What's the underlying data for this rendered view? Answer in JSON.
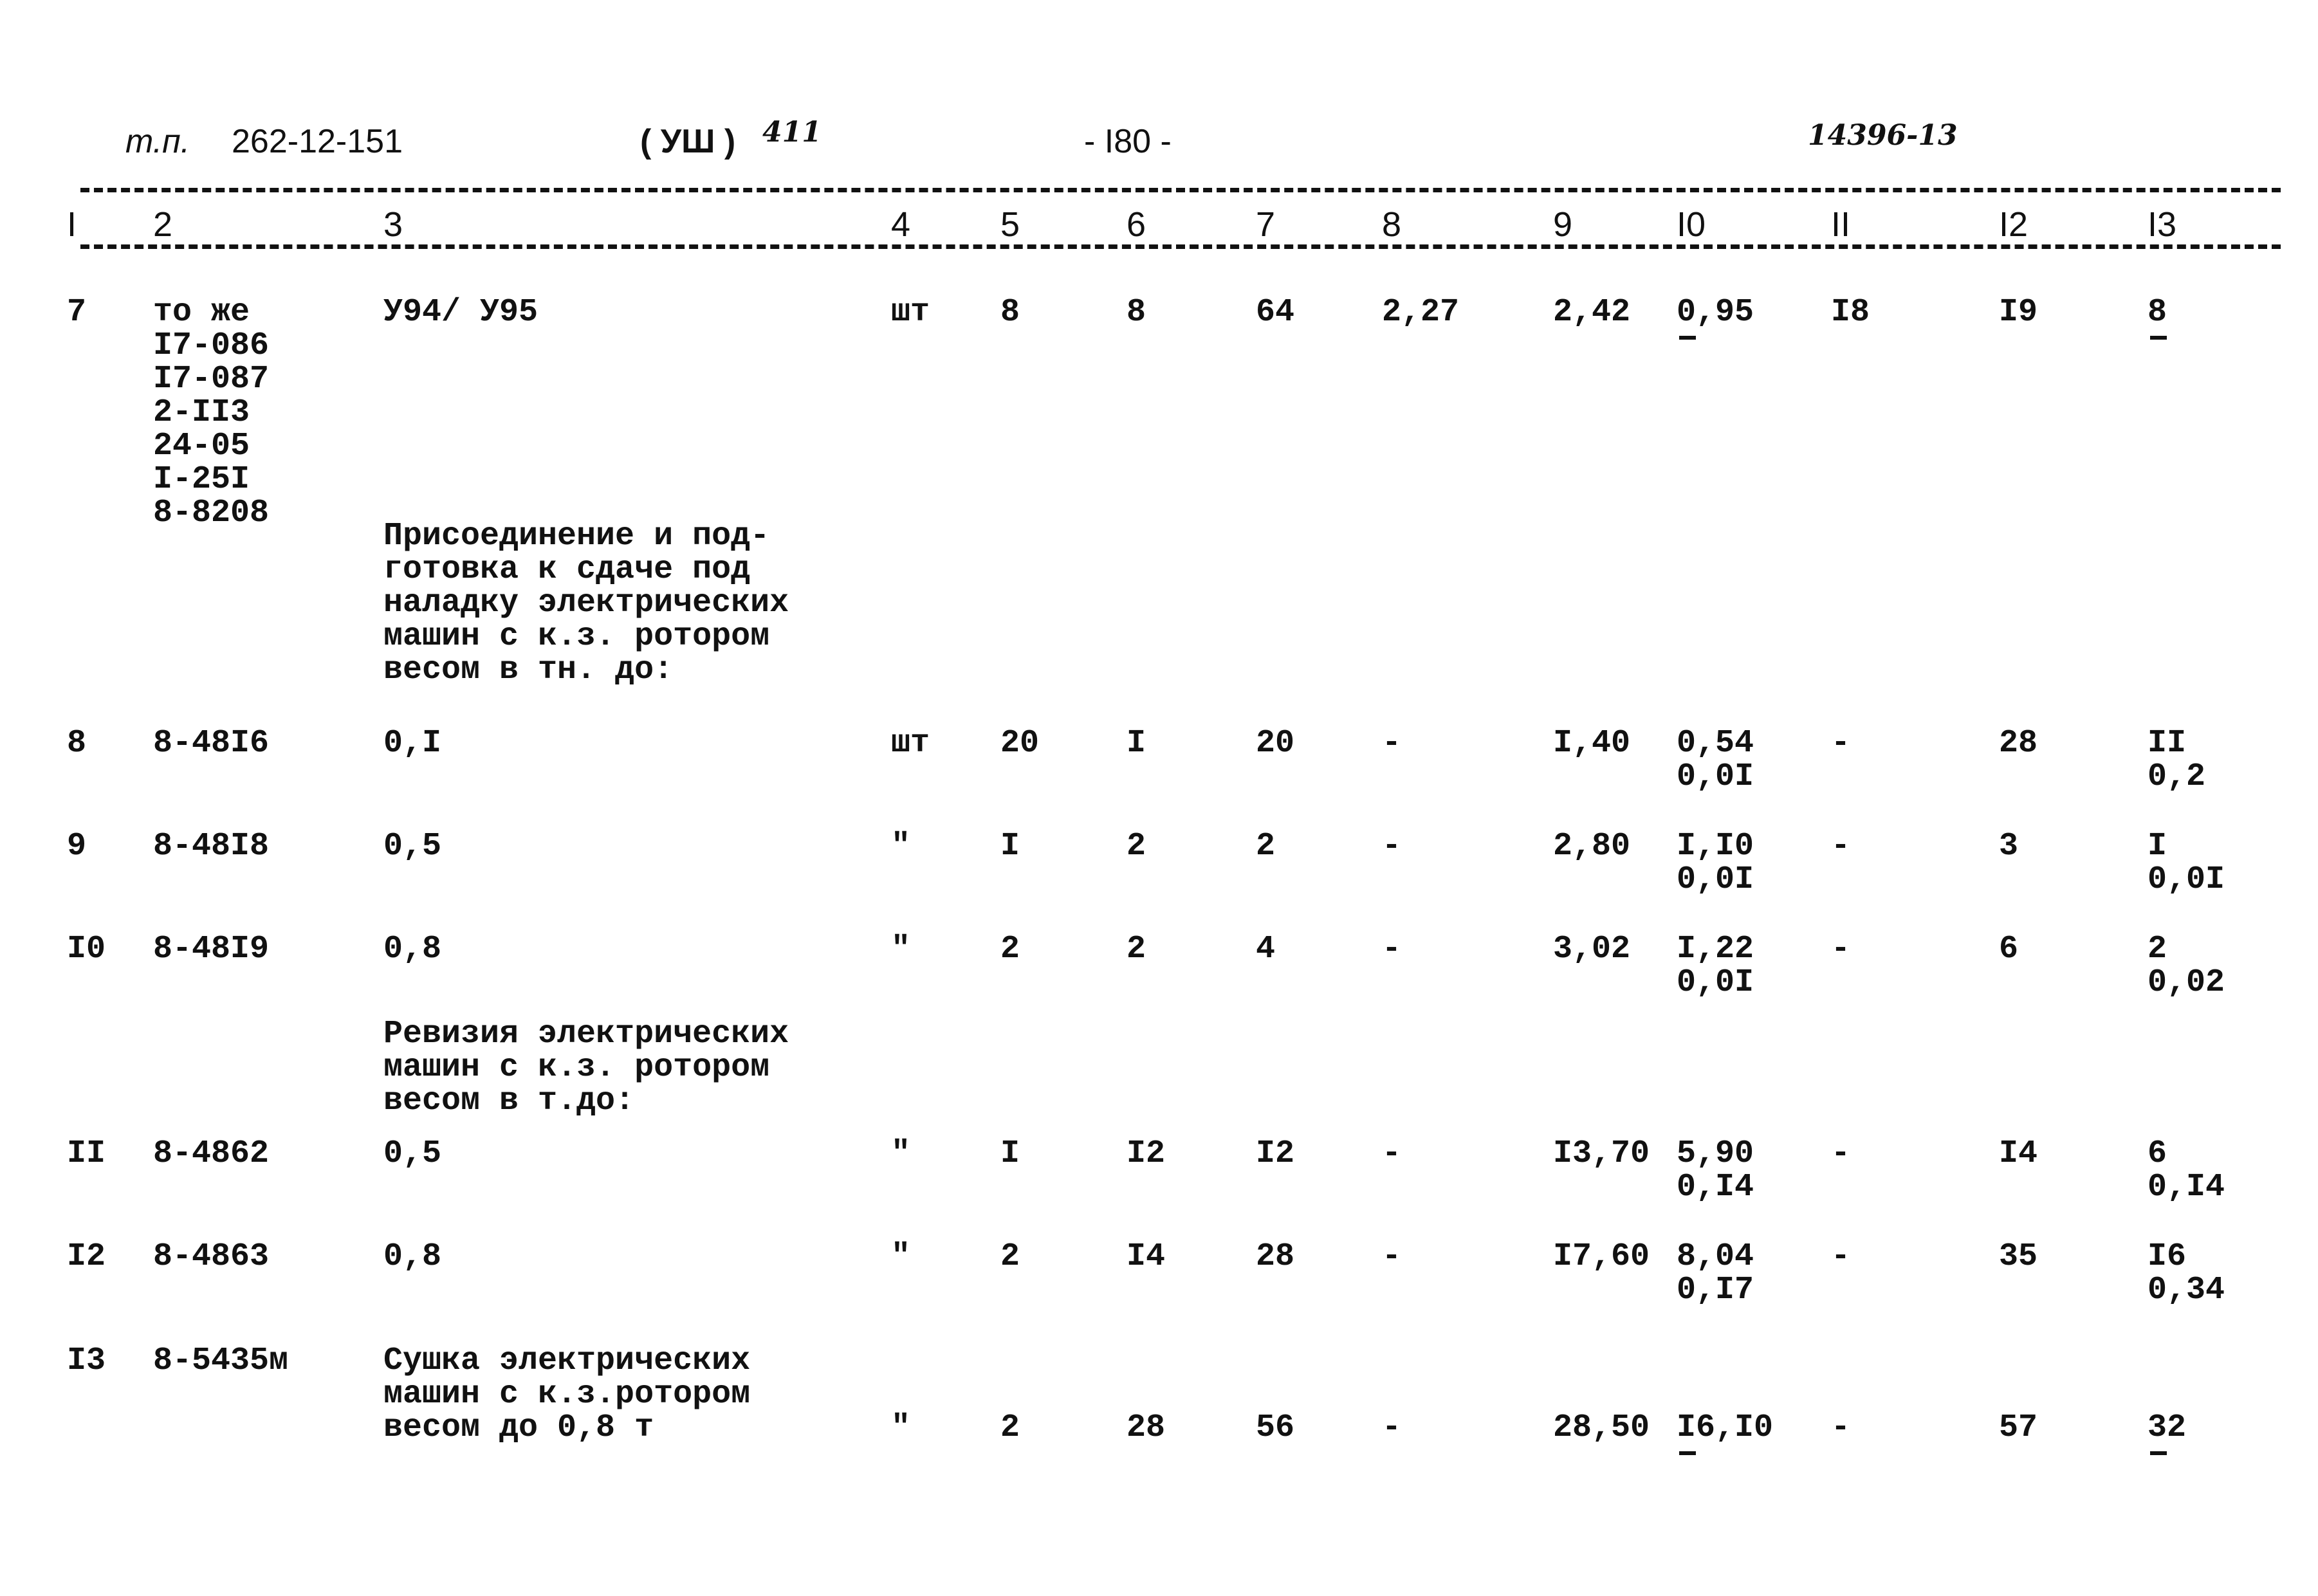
{
  "header": {
    "project_prefix": "т.п.",
    "project_code": "262-12-151",
    "section": "( УШ )",
    "section_note": "411",
    "page": "- I80 -",
    "sheet_note": "14396-13"
  },
  "column_headers": [
    "I",
    "2",
    "3",
    "4",
    "5",
    "6",
    "7",
    "8",
    "9",
    "I0",
    "II",
    "I2",
    "I3"
  ],
  "rows": [
    {
      "cells": [
        "7",
        "то же\nI7-086\nI7-087\n2-II3\n24-05\nI-25I\n8-8208",
        "У94/ У95",
        "шт",
        "8",
        "8",
        "64",
        "2,27",
        "2,42",
        "0,95",
        "I8",
        "I9",
        "8"
      ],
      "marked": [
        9,
        12
      ]
    },
    {
      "section_title": "Присоединение и под-\nготовка к сдаче под\nналадку электрических\nмашин с к.з. ротором\nвесом в тн. до:"
    },
    {
      "cells": [
        "8",
        "8-48I6",
        "0,I",
        "шт",
        "20",
        "I",
        "20",
        "-",
        "I,40",
        "0,54\n0,0I",
        "-",
        "28",
        "II\n0,2"
      ]
    },
    {
      "cells": [
        "9",
        "8-48I8",
        "0,5",
        "\"",
        "I",
        "2",
        "2",
        "-",
        "2,80",
        "I,I0\n0,0I",
        "-",
        "3",
        "I\n0,0I"
      ]
    },
    {
      "cells": [
        "I0",
        "8-48I9",
        "0,8",
        "\"",
        "2",
        "2",
        "4",
        "-",
        "3,02",
        "I,22\n0,0I",
        "-",
        "6",
        "2\n0,02"
      ]
    },
    {
      "section_title": "Ревизия электрических\nмашин с к.з. ротором\nвесом в т.до:"
    },
    {
      "cells": [
        "II",
        "8-4862",
        "0,5",
        "\"",
        "I",
        "I2",
        "I2",
        "-",
        "I3,70",
        "5,90\n0,I4",
        "-",
        "I4",
        "6\n0,I4"
      ]
    },
    {
      "cells": [
        "I2",
        "8-4863",
        "0,8",
        "\"",
        "2",
        "I4",
        "28",
        "-",
        "I7,60",
        "8,04\n0,I7",
        "-",
        "35",
        "I6\n0,34"
      ]
    },
    {
      "cells": [
        "I3",
        "8-5435м",
        "Сушка электрических\nмашин с к.з.ротором\nвесом до 0,8 т",
        "\"",
        "2",
        "28",
        "56",
        "-",
        "28,50",
        "I6,I0",
        "-",
        "57",
        "32"
      ],
      "marked": [
        9,
        12
      ],
      "values_on_last_line": true
    }
  ]
}
